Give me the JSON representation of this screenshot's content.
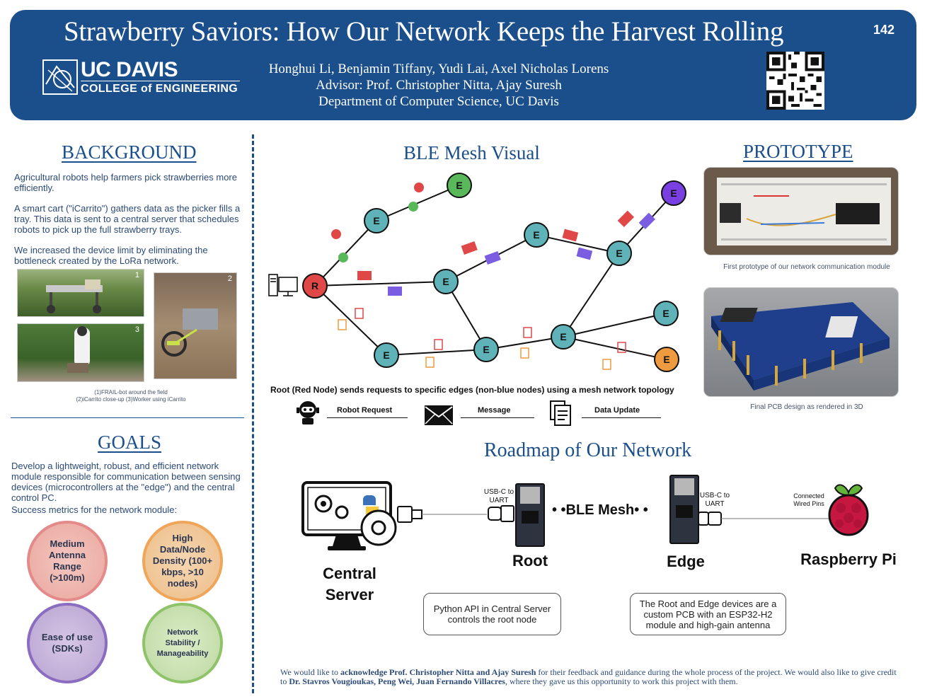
{
  "header": {
    "title": "Strawberry Saviors: How Our Network Keeps the Harvest Rolling",
    "poster_number": "142",
    "logo_uc": "UC DAVIS",
    "logo_college": "COLLEGE of ENGINEERING",
    "authors": "Honghui Li, Benjamin Tiffany, Yudi Lai, Axel Nicholas Lorens",
    "advisor": "Advisor: Prof. Christopher Nitta, Ajay Suresh",
    "department": "Department of Computer Science, UC Davis"
  },
  "background": {
    "title": "BACKGROUND",
    "p1": "Agricultural robots help farmers pick strawberries more efficiently.",
    "p2": "A smart cart (\"iCarrito\") gathers data as the picker fills a tray. This data is sent to a central server that schedules robots to pick up the full strawberry trays.",
    "p3": "We increased the device limit by eliminating the bottleneck created by the LoRa network.",
    "photo_labels": [
      "1",
      "2",
      "3"
    ],
    "caption_line1": "(1)FRAIL-bot around the field",
    "caption_line2": "(2)iCarrito close-up     (3)Worker using iCarrito"
  },
  "goals": {
    "title": "GOALS",
    "p1": "Develop a lightweight, robust, and efficient network module responsible for communication between sensing devices (microcontrollers at the \"edge\") and the central control PC.",
    "p2": "Success metrics for the network module:",
    "metrics": [
      {
        "label": "Medium Antenna Range (>100m)",
        "color": "#e48a8a"
      },
      {
        "label": "High Data/Node Density (100+ kbps, >10 nodes)",
        "color": "#f0a65a"
      },
      {
        "label": "Ease of use (SDKs)",
        "color": "#8a6cc0"
      },
      {
        "label": "Network Stability / Manageability",
        "color": "#8fc36a"
      }
    ]
  },
  "mesh": {
    "title": "BLE Mesh Visual",
    "root_label": "R",
    "edge_label": "E",
    "caption": "Root (Red Node) sends requests to specific edges (non-blue nodes) using a mesh network topology",
    "legend": [
      {
        "label": "Robot Request",
        "icon": "robot-icon"
      },
      {
        "label": "Message",
        "icon": "envelope-icon"
      },
      {
        "label": "Data Update",
        "icon": "document-icon"
      }
    ],
    "colors": {
      "root": "#e04848",
      "edge_blue": "#5fb3b8",
      "edge_green": "#58b85a",
      "edge_purple": "#7a3fe0",
      "edge_orange": "#ee9b3f"
    }
  },
  "prototype": {
    "title": "PROTOTYPE",
    "caption1": "First prototype of our network communication module",
    "caption2": "Final PCB design as rendered in 3D"
  },
  "roadmap": {
    "title": "Roadmap of Our Network",
    "central_server": "Central Server",
    "root": "Root",
    "edge": "Edge",
    "raspberry_pi": "Raspberry Pi",
    "usbc_1": "USB-C to UART",
    "usbc_2": "USB-C to UART",
    "ble_mesh": "• •BLE Mesh• •",
    "wired_pins": "Connected Wired Pins",
    "note1": "Python API in Central Server controls the root node",
    "note2": "The Root and Edge devices are a custom PCB with an ESP32-H2 module and high-gain antenna"
  },
  "acknowledgement": {
    "text_a": "We would like to ",
    "bold_a": "acknowledge Prof. Christopher Nitta and Ajay Suresh",
    "text_b": " for their feedback and guidance during the whole process of the project. We would also like to give credit to ",
    "bold_b": "Dr. Stavros Vougioukas, Peng Wei, Juan Fernando Villacres",
    "text_c": ", where they gave us this opportunity to work this project with them."
  }
}
